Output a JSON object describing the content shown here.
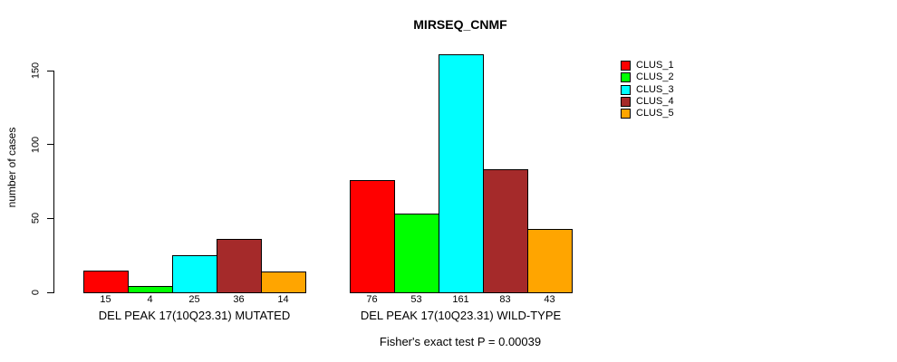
{
  "chart_data": {
    "type": "bar",
    "title": "MIRSEQ_CNMF",
    "ylabel": "number of cases",
    "yticks": [
      0,
      50,
      100,
      150
    ],
    "ylim": [
      0,
      161
    ],
    "grid": false,
    "legend_position": "right",
    "categories": [
      "DEL PEAK 17(10Q23.31) MUTATED",
      "DEL PEAK 17(10Q23.31) WILD-TYPE"
    ],
    "series": [
      {
        "name": "CLUS_1",
        "color": "#FF0000",
        "values": [
          15,
          76
        ]
      },
      {
        "name": "CLUS_2",
        "color": "#00FF00",
        "values": [
          4,
          53
        ]
      },
      {
        "name": "CLUS_3",
        "color": "#00FFFF",
        "values": [
          25,
          161
        ]
      },
      {
        "name": "CLUS_4",
        "color": "#A52A2A",
        "values": [
          36,
          83
        ]
      },
      {
        "name": "CLUS_5",
        "color": "#FFA500",
        "values": [
          14,
          43
        ]
      }
    ],
    "bar_value_labels": true,
    "annotation": "Fisher's exact test P = 0.00039"
  },
  "colors": {
    "background": "#FFFFFF",
    "axis": "#000000",
    "text": "#000000"
  }
}
